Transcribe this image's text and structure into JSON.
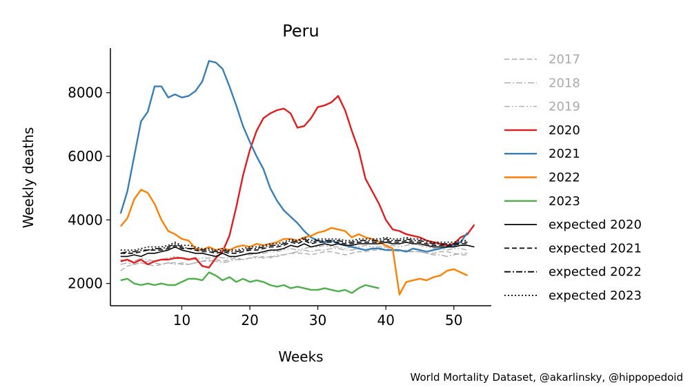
{
  "chart_data": {
    "type": "line",
    "title": "Peru",
    "xlabel": "Weeks",
    "ylabel": "Weekly deaths",
    "xlim": [
      -0.5,
      55.5
    ],
    "ylim": [
      1300,
      9400
    ],
    "xticks": [
      10,
      20,
      30,
      40,
      50
    ],
    "yticks": [
      2000,
      4000,
      6000,
      8000
    ],
    "legend_position": "right-outside",
    "credit": "World Mortality Dataset, @akarlinsky, @hippopedoid",
    "series": [
      {
        "name": "2017",
        "color": "#aaaaaa",
        "dash": "dashed",
        "x_start": 1,
        "values": [
          2400,
          2550,
          2600,
          2650,
          2600,
          2550,
          2600,
          2650,
          2650,
          2600,
          2600,
          2650,
          2700,
          2700,
          2750,
          2700,
          2750,
          2800,
          2750,
          2800,
          2850,
          2800,
          2850,
          2850,
          2900,
          2950,
          2950,
          2950,
          2900,
          2950,
          3000,
          3000,
          2950,
          2900,
          2950,
          3000,
          3000,
          3050,
          3050,
          3100,
          3050,
          3000,
          3050,
          3000,
          3000,
          2950,
          2950,
          3000,
          3000,
          2950,
          2900,
          2900
        ]
      },
      {
        "name": "2018",
        "color": "#aaaaaa",
        "dash": "dashdot",
        "x_start": 1,
        "values": [
          2600,
          2650,
          2600,
          2650,
          2700,
          2650,
          2600,
          2650,
          2600,
          2650,
          2600,
          2650,
          2700,
          2750,
          2700,
          2650,
          2700,
          2750,
          2750,
          2800,
          2800,
          2850,
          2800,
          2900,
          2900,
          2950,
          3000,
          3050,
          3000,
          3050,
          3050,
          3100,
          3100,
          3050,
          3050,
          3100,
          3050,
          3100,
          3100,
          3150,
          3100,
          3050,
          3000,
          3000,
          3000,
          2950,
          2900,
          2900,
          2850,
          2900,
          2950,
          2950
        ]
      },
      {
        "name": "2019",
        "color": "#aaaaaa",
        "dash": "dashdotdot",
        "x_start": 1,
        "values": [
          2750,
          2700,
          2700,
          2800,
          2750,
          2700,
          2750,
          2800,
          2850,
          2800,
          2800,
          2750,
          2800,
          2800,
          2850,
          2800,
          2800,
          2850,
          2900,
          2900,
          2950,
          2950,
          3000,
          3000,
          3050,
          3100,
          3050,
          3100,
          3150,
          3150,
          3200,
          3150,
          3150,
          3100,
          3150,
          3150,
          3200,
          3150,
          3150,
          3200,
          3200,
          3150,
          3200,
          3250,
          3200,
          3150,
          3100,
          3100,
          3050,
          3100,
          3100,
          3050
        ]
      },
      {
        "name": "2020",
        "color": "#e41a1c",
        "dash": "solid",
        "x_start": 1,
        "values": [
          2700,
          2750,
          2650,
          2750,
          2600,
          2700,
          2750,
          2750,
          2800,
          2800,
          2750,
          2800,
          2550,
          2500,
          2800,
          3000,
          3500,
          4400,
          5400,
          6200,
          6800,
          7200,
          7350,
          7450,
          7500,
          7350,
          6900,
          6950,
          7200,
          7550,
          7600,
          7700,
          7900,
          7450,
          6800,
          6200,
          5300,
          4900,
          4500,
          4000,
          3700,
          3650,
          3550,
          3500,
          3450,
          3350,
          3300,
          3250,
          3200,
          3250,
          3450,
          3550,
          3850
        ]
      },
      {
        "name": "2021",
        "color": "#377eb8",
        "dash": "solid",
        "x_start": 1,
        "values": [
          4200,
          4900,
          6000,
          7100,
          7400,
          8200,
          8200,
          7850,
          7950,
          7850,
          7900,
          8050,
          8350,
          9000,
          8950,
          8750,
          8200,
          7600,
          6950,
          6450,
          6000,
          5600,
          5000,
          4600,
          4300,
          4100,
          3900,
          3650,
          3450,
          3350,
          3300,
          3350,
          3250,
          3200,
          3150,
          3100,
          3050,
          3100,
          3100,
          3050,
          3050,
          3050,
          3000,
          3100,
          3050,
          3000,
          3050,
          3100,
          3150,
          3200,
          3300,
          3600
        ]
      },
      {
        "name": "2022",
        "color": "#ff7f00",
        "dash": "solid",
        "x_start": 1,
        "values": [
          3800,
          4050,
          4650,
          4950,
          4850,
          4500,
          4000,
          3650,
          3550,
          3400,
          3350,
          3100,
          3050,
          3150,
          3050,
          3100,
          3050,
          3150,
          3200,
          3150,
          3250,
          3200,
          3250,
          3300,
          3400,
          3400,
          3350,
          3450,
          3500,
          3600,
          3650,
          3750,
          3700,
          3650,
          3450,
          3550,
          3450,
          3400,
          3300,
          3200,
          3100,
          1650,
          2050,
          2100,
          2150,
          2100,
          2200,
          2250,
          2400,
          2450,
          2350,
          2250
        ]
      },
      {
        "name": "2023",
        "color": "#4daf4a",
        "dash": "solid",
        "x_start": 1,
        "values": [
          2100,
          2150,
          2000,
          1950,
          2000,
          1950,
          2000,
          1950,
          1950,
          2050,
          2150,
          2150,
          2100,
          2350,
          2250,
          2100,
          2200,
          2050,
          2150,
          2050,
          2100,
          2050,
          1950,
          1900,
          1950,
          1850,
          1900,
          1850,
          1800,
          1800,
          1850,
          1800,
          1750,
          1800,
          1700,
          1850,
          1950,
          1900,
          1850
        ]
      },
      {
        "name": "expected 2020",
        "color": "#000000",
        "dash": "solid",
        "x_start": 1,
        "values": [
          2850,
          2850,
          2900,
          2850,
          2950,
          2950,
          3000,
          3050,
          3150,
          3050,
          3000,
          2950,
          2950,
          2900,
          2850,
          2950,
          2850,
          2850,
          2900,
          2950,
          2950,
          3000,
          3050,
          3050,
          3100,
          3200,
          3150,
          3250,
          3150,
          3200,
          3250,
          3200,
          3250,
          3200,
          3200,
          3250,
          3250,
          3250,
          3250,
          3300,
          3250,
          3250,
          3300,
          3250,
          3250,
          3200,
          3150,
          3150,
          3150,
          3150,
          3200,
          3200,
          3150
        ]
      },
      {
        "name": "expected 2021",
        "color": "#000000",
        "dash": "dashed",
        "x_start": 1,
        "values": [
          2950,
          2950,
          2950,
          3000,
          3050,
          3050,
          3050,
          3100,
          3200,
          3100,
          3100,
          3050,
          3000,
          3000,
          2950,
          3000,
          2950,
          2950,
          3000,
          3050,
          3050,
          3100,
          3150,
          3150,
          3200,
          3300,
          3250,
          3350,
          3250,
          3300,
          3300,
          3300,
          3300,
          3250,
          3250,
          3300,
          3300,
          3300,
          3300,
          3350,
          3300,
          3300,
          3350,
          3300,
          3300,
          3250,
          3200,
          3200,
          3200,
          3200,
          3250,
          3250
        ]
      },
      {
        "name": "expected 2022",
        "color": "#000000",
        "dash": "dashdot",
        "x_start": 1,
        "values": [
          2950,
          3000,
          3000,
          3050,
          3050,
          3100,
          3100,
          3150,
          3250,
          3150,
          3100,
          3100,
          3050,
          3050,
          3000,
          3050,
          3000,
          3000,
          3050,
          3100,
          3100,
          3150,
          3200,
          3200,
          3250,
          3350,
          3300,
          3400,
          3300,
          3350,
          3350,
          3350,
          3350,
          3300,
          3300,
          3350,
          3350,
          3350,
          3350,
          3400,
          3350,
          3350,
          3400,
          3350,
          3350,
          3300,
          3250,
          3250,
          3250,
          3250,
          3300,
          3300
        ]
      },
      {
        "name": "expected 2023",
        "color": "#000000",
        "dash": "dotted",
        "x_start": 1,
        "values": [
          3050,
          3050,
          3050,
          3100,
          3150,
          3150,
          3150,
          3200,
          3300,
          3200,
          3200,
          3150,
          3100,
          3100,
          3050,
          3100,
          3050,
          3050,
          3100,
          3150,
          3150,
          3200,
          3250,
          3250,
          3300,
          3400,
          3350,
          3450,
          3350,
          3400,
          3400,
          3400,
          3400,
          3350,
          3350,
          3400,
          3400,
          3400,
          3400,
          3450,
          3400,
          3400,
          3450,
          3400,
          3400,
          3350,
          3300,
          3300,
          3300,
          3300,
          3350,
          3350
        ]
      }
    ]
  }
}
